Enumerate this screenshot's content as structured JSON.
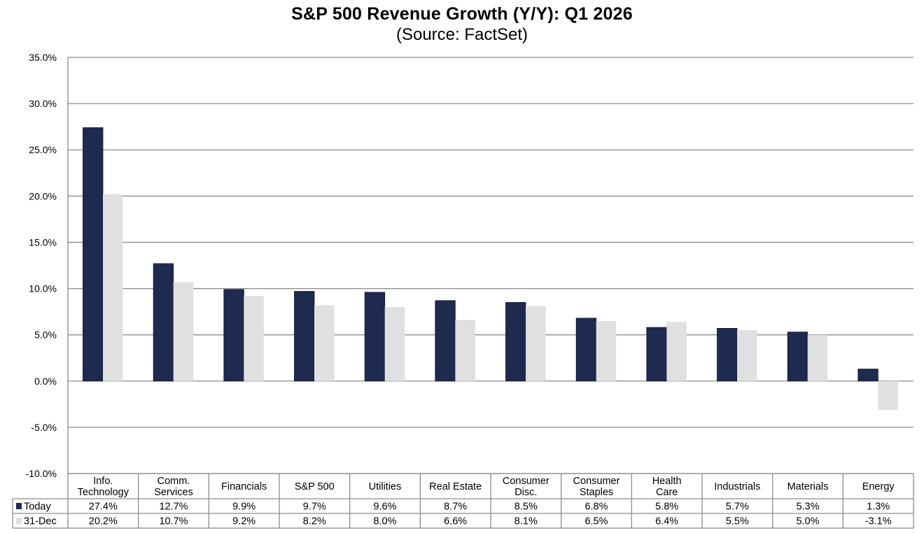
{
  "chart_data": {
    "type": "bar",
    "title": "S&P 500 Revenue Growth (Y/Y): Q1 2026",
    "subtitle": "(Source: FactSet)",
    "xlabel": "",
    "ylabel": "",
    "ylim": [
      -10,
      35
    ],
    "yticks": [
      35,
      30,
      25,
      20,
      15,
      10,
      5,
      0,
      -5,
      -10
    ],
    "ytick_labels": [
      "35.0%",
      "30.0%",
      "25.0%",
      "20.0%",
      "15.0%",
      "10.0%",
      "5.0%",
      "0.0%",
      "-5.0%",
      "-10.0%"
    ],
    "grid": true,
    "legend": "data-table-left",
    "categories": [
      [
        "Info.",
        "Technology"
      ],
      [
        "Comm.",
        "Services"
      ],
      [
        "Financials"
      ],
      [
        "S&P 500"
      ],
      [
        "Utilities"
      ],
      [
        "Real Estate"
      ],
      [
        "Consumer",
        "Disc."
      ],
      [
        "Consumer",
        "Staples"
      ],
      [
        "Health",
        "Care"
      ],
      [
        "Industrials"
      ],
      [
        "Materials"
      ],
      [
        "Energy"
      ]
    ],
    "series": [
      {
        "name": "Today",
        "color": "#1f2a4f",
        "values": [
          27.4,
          12.7,
          9.9,
          9.7,
          9.6,
          8.7,
          8.5,
          6.8,
          5.8,
          5.7,
          5.3,
          1.3
        ],
        "labels": [
          "27.4%",
          "12.7%",
          "9.9%",
          "9.7%",
          "9.6%",
          "8.7%",
          "8.5%",
          "6.8%",
          "5.8%",
          "5.7%",
          "5.3%",
          "1.3%"
        ]
      },
      {
        "name": "31-Dec",
        "color": "#e0e0e0",
        "values": [
          20.2,
          10.7,
          9.2,
          8.2,
          8.0,
          6.6,
          8.1,
          6.5,
          6.4,
          5.5,
          5.0,
          -3.1
        ],
        "labels": [
          "20.2%",
          "10.7%",
          "9.2%",
          "8.2%",
          "8.0%",
          "6.6%",
          "8.1%",
          "6.5%",
          "6.4%",
          "5.5%",
          "5.0%",
          "-3.1%"
        ]
      }
    ]
  }
}
